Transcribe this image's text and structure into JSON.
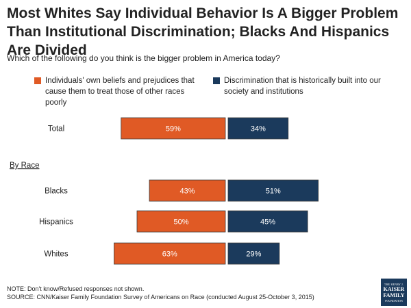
{
  "title": "Most Whites Say Individual Behavior Is A Bigger Problem Than Institutional Discrimination; Blacks And Hispanics Are Divided",
  "subtitle": "Which of the following do you think is the bigger problem in America today?",
  "footer": {
    "note": "NOTE: Don't know/Refused responses not shown.",
    "source": "SOURCE: CNN/Kaiser Family Foundation Survey of Americans on Race (conducted August 25-October 3, 2015)"
  },
  "logo": {
    "line1": "THE HENRY J.",
    "line2": "KAISER",
    "line3": "FAMILY",
    "line4": "FOUNDATION"
  },
  "colors": {
    "individual": "#e05a25",
    "discrimination": "#1b3a5c"
  },
  "chart_data": {
    "type": "bar",
    "orientation": "diverging-horizontal",
    "title": "Most Whites Say Individual Behavior Is A Bigger Problem Than Institutional Discrimination; Blacks And Hispanics Are Divided",
    "section_label": "By Race",
    "categories": [
      "Total",
      "Blacks",
      "Hispanics",
      "Whites"
    ],
    "series": [
      {
        "name": "Individuals' own beliefs and prejudices that cause them to treat those of other races poorly",
        "values": [
          59,
          43,
          50,
          63
        ],
        "labels": [
          "59%",
          "43%",
          "50%",
          "63%"
        ]
      },
      {
        "name": "Discrimination that is historically built into our society and institutions",
        "values": [
          34,
          51,
          45,
          29
        ],
        "labels": [
          "34%",
          "51%",
          "45%",
          "29%"
        ]
      }
    ],
    "unit": "%"
  }
}
